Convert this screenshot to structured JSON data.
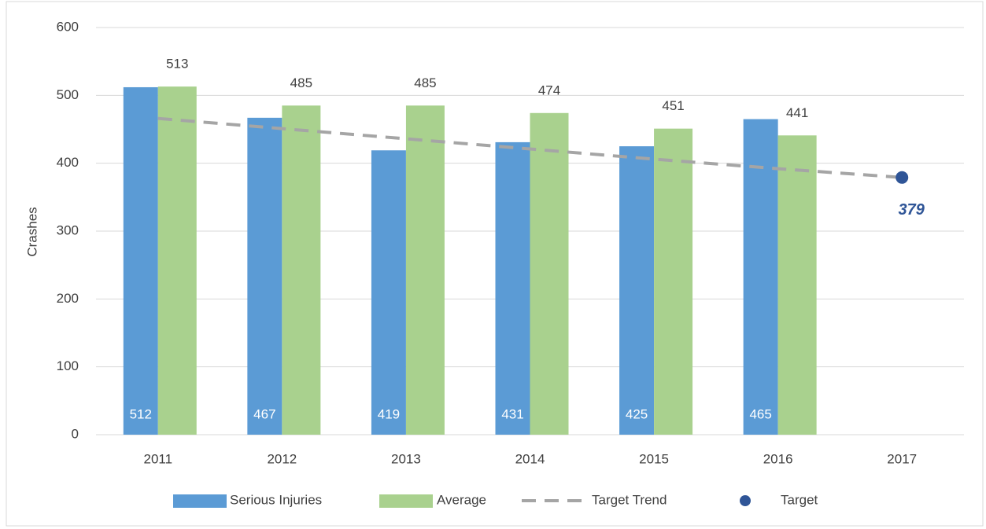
{
  "chart_data": {
    "type": "bar",
    "y_label": "Crashes",
    "categories": [
      "2011",
      "2012",
      "2013",
      "2014",
      "2015",
      "2016",
      "2017"
    ],
    "series": [
      {
        "name": "Serious Injuries",
        "type": "bar",
        "color": "#5b9bd5",
        "values": [
          512,
          467,
          419,
          431,
          425,
          465,
          null
        ]
      },
      {
        "name": "Average",
        "type": "bar",
        "color": "#a9d18e",
        "values": [
          513,
          485,
          485,
          474,
          451,
          441,
          null
        ]
      },
      {
        "name": "Target Trend",
        "type": "line",
        "color": "#a5a5a5",
        "values": [
          466,
          451,
          436,
          421,
          406,
          392,
          379
        ]
      },
      {
        "name": "Target",
        "type": "scatter",
        "color": "#2f5597",
        "values": [
          null,
          null,
          null,
          null,
          null,
          null,
          379
        ]
      }
    ],
    "ylim": [
      0,
      600
    ],
    "yticks": [
      0,
      100,
      200,
      300,
      400,
      500,
      600
    ],
    "grid": true,
    "legend": "bottom"
  }
}
